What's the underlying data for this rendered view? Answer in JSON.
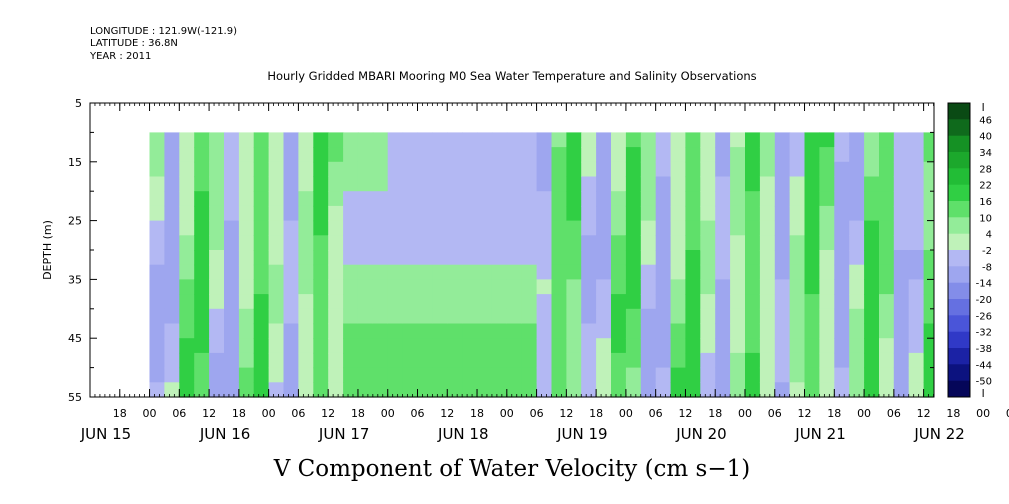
{
  "header": {
    "longitude": "LONGITUDE : 121.9W(-121.9)",
    "latitude": "LATITUDE : 36.8N",
    "year": "YEAR : 2011"
  },
  "chart_data": {
    "type": "heatmap",
    "title": "Hourly Gridded MBARI Mooring M0 Sea Water Temperature and Salinity Observations",
    "variable_label": "V Component of Water Velocity (cm s−1)",
    "ylabel": "DEPTH (m)",
    "y_reversed": true,
    "ylim": [
      5,
      55
    ],
    "y_ticks": [
      5,
      15,
      25,
      35,
      45,
      55
    ],
    "x_range_hours": [
      -12,
      180
    ],
    "x_hour_ticks": [
      {
        "h": -6,
        "label": "18"
      },
      {
        "h": 0,
        "label": "00"
      },
      {
        "h": 6,
        "label": "06"
      },
      {
        "h": 12,
        "label": "12"
      },
      {
        "h": 18,
        "label": "18"
      },
      {
        "h": 24,
        "label": "00"
      },
      {
        "h": 30,
        "label": "06"
      },
      {
        "h": 36,
        "label": "12"
      },
      {
        "h": 42,
        "label": "18"
      },
      {
        "h": 48,
        "label": "00"
      },
      {
        "h": 54,
        "label": "06"
      },
      {
        "h": 60,
        "label": "12"
      },
      {
        "h": 66,
        "label": "18"
      },
      {
        "h": 72,
        "label": "00"
      },
      {
        "h": 78,
        "label": "06"
      },
      {
        "h": 84,
        "label": "12"
      },
      {
        "h": 90,
        "label": "18"
      },
      {
        "h": 96,
        "label": "00"
      },
      {
        "h": 102,
        "label": "06"
      },
      {
        "h": 108,
        "label": "12"
      },
      {
        "h": 114,
        "label": "18"
      },
      {
        "h": 120,
        "label": "00"
      },
      {
        "h": 126,
        "label": "06"
      },
      {
        "h": 132,
        "label": "12"
      },
      {
        "h": 138,
        "label": "18"
      },
      {
        "h": 144,
        "label": "00"
      },
      {
        "h": 150,
        "label": "06"
      },
      {
        "h": 156,
        "label": "12"
      },
      {
        "h": 162,
        "label": "18"
      },
      {
        "h": 168,
        "label": "00"
      },
      {
        "h": 174,
        "label": "06"
      },
      {
        "h": 180,
        "label": "12"
      }
    ],
    "date_labels": [
      {
        "h": -12,
        "label": "JUN 15"
      },
      {
        "h": 12,
        "label": "JUN 16"
      },
      {
        "h": 36,
        "label": "JUN 17"
      },
      {
        "h": 60,
        "label": "JUN 18"
      },
      {
        "h": 84,
        "label": "JUN 19"
      },
      {
        "h": 108,
        "label": "JUN 20"
      },
      {
        "h": 132,
        "label": "JUN 21"
      },
      {
        "h": 156,
        "label": "JUN 22"
      }
    ],
    "data_x_range_hours": [
      0,
      188
    ],
    "data_depth_range": [
      10,
      55
    ],
    "colorbar_labels": [
      "46",
      "40",
      "34",
      "28",
      "22",
      "16",
      "10",
      "4",
      "-2",
      "-8",
      "-14",
      "-20",
      "-26",
      "-32",
      "-38",
      "-44",
      "-50"
    ],
    "colorbar_colors": [
      "#0a4a14",
      "#0f6a1c",
      "#159124",
      "#1ca82c",
      "#22bd36",
      "#30cf44",
      "#5fe06a",
      "#93ec99",
      "#bff2b9",
      "#b3b8f3",
      "#9ea6ef",
      "#838de9",
      "#6570e1",
      "#4a55d9",
      "#3039c7",
      "#1b22a5",
      "#0c127f",
      "#050659"
    ],
    "cell_hours": 3,
    "depth_levels": [
      10,
      12.5,
      15,
      17.5,
      20,
      22.5,
      25,
      27.5,
      30,
      32.5,
      35,
      37.5,
      40,
      42.5,
      45,
      47.5,
      50,
      52.5,
      55
    ]
  }
}
